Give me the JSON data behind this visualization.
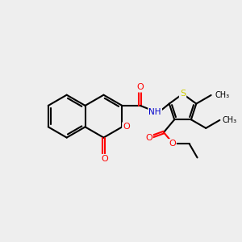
{
  "bg": "#eeeeee",
  "bond_color": "#000000",
  "lw": 1.5,
  "atom_colors": {
    "O": "#ff0000",
    "N": "#0000cd",
    "S": "#cccc00",
    "C": "#000000"
  },
  "fs": 7.5,
  "xlim": [
    0,
    10
  ],
  "ylim": [
    0,
    10
  ]
}
